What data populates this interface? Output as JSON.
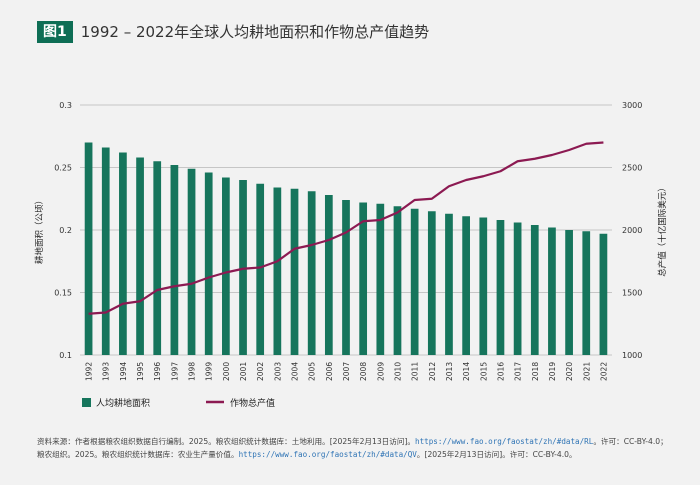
{
  "figure": {
    "label": "图1",
    "title": "1992 – 2022年全球人均耕地面积和作物总产值趋势"
  },
  "colors": {
    "bar": "#16755c",
    "line": "#8c1a52",
    "badge": "#0e6e55",
    "link": "#2f74b5"
  },
  "chart_data": {
    "type": "bar+line",
    "categories": [
      "1992",
      "1993",
      "1994",
      "1995",
      "1996",
      "1997",
      "1998",
      "1999",
      "2000",
      "2001",
      "2002",
      "2003",
      "2004",
      "2005",
      "2006",
      "2007",
      "2008",
      "2009",
      "2010",
      "2011",
      "2012",
      "2013",
      "2014",
      "2015",
      "2016",
      "2017",
      "2018",
      "2019",
      "2020",
      "2021",
      "2022"
    ],
    "left_axis": {
      "label": "耕地面积（公顷）",
      "ylim": [
        0.1,
        0.3
      ],
      "ticks": [
        "0.1",
        "0.15",
        "0.2",
        "0.25",
        "0.3"
      ]
    },
    "right_axis": {
      "label": "总产值（十亿国际美元）",
      "ylim": [
        1000,
        3000
      ],
      "ticks": [
        "1000",
        "1500",
        "2000",
        "2500",
        "3000"
      ]
    },
    "series": [
      {
        "name": "人均耕地面积",
        "type": "bar",
        "axis": "left",
        "values": [
          0.27,
          0.266,
          0.262,
          0.258,
          0.255,
          0.252,
          0.249,
          0.246,
          0.242,
          0.24,
          0.237,
          0.234,
          0.233,
          0.231,
          0.228,
          0.224,
          0.222,
          0.221,
          0.219,
          0.217,
          0.215,
          0.213,
          0.211,
          0.21,
          0.208,
          0.206,
          0.204,
          0.202,
          0.2,
          0.199,
          0.197
        ]
      },
      {
        "name": "作物总产值",
        "type": "line",
        "axis": "right",
        "values": [
          1330,
          1340,
          1410,
          1430,
          1520,
          1550,
          1570,
          1620,
          1660,
          1690,
          1700,
          1750,
          1850,
          1880,
          1920,
          1980,
          2070,
          2080,
          2140,
          2240,
          2250,
          2350,
          2400,
          2430,
          2470,
          2550,
          2570,
          2600,
          2640,
          2690,
          2700
        ]
      }
    ],
    "legend": [
      "人均耕地面积",
      "作物总产值"
    ],
    "grid": true
  },
  "source": {
    "prefix": "资料来源：作者根据粮农组织数据自行编制。2025。粮农组织统计数据库：土地利用。[2025年2月13日访问]。",
    "url1": "https://www.fao.org/faostat/zh/#data/RL",
    "mid": "。许可：CC-BY-4.0；粮农组织。2025。粮农组织统计数据库：农业生产量价值。",
    "url2": "https://www.fao.org/faostat/zh/#data/QV",
    "suffix": "。[2025年2月13日访问]。许可：CC-BY-4.0。"
  }
}
